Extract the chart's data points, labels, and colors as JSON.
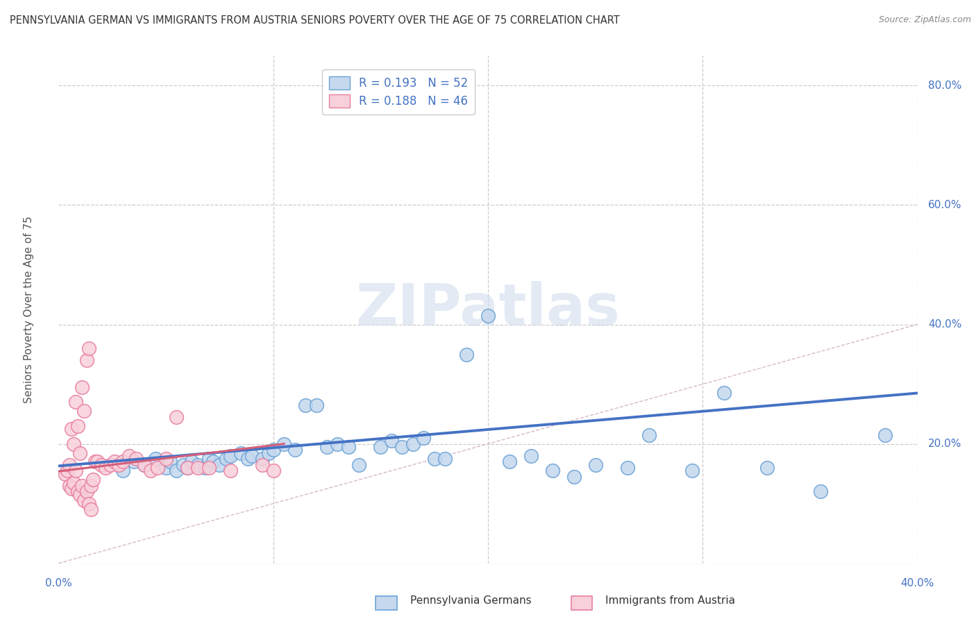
{
  "title": "PENNSYLVANIA GERMAN VS IMMIGRANTS FROM AUSTRIA SENIORS POVERTY OVER THE AGE OF 75 CORRELATION CHART",
  "source": "Source: ZipAtlas.com",
  "ylabel": "Seniors Poverty Over the Age of 75",
  "xlim": [
    0.0,
    0.42
  ],
  "ylim": [
    -0.02,
    0.88
  ],
  "plot_xlim": [
    0.0,
    0.4
  ],
  "plot_ylim": [
    0.0,
    0.85
  ],
  "xticks": [
    0.0,
    0.1,
    0.2,
    0.3,
    0.4
  ],
  "xtick_labels": [
    "0.0%",
    "",
    "",
    "",
    "40.0%"
  ],
  "yticks_right": [
    0.2,
    0.4,
    0.6,
    0.8
  ],
  "ytick_labels_right": [
    "20.0%",
    "40.0%",
    "60.0%",
    "80.0%"
  ],
  "blue_color": "#c5d8ee",
  "blue_edge": "#6ba3d6",
  "pink_color": "#f8d0da",
  "pink_edge": "#e87fa0",
  "trend_blue": "#4472c4",
  "trend_pink": "#d45f7a",
  "diag_color": "#d8b8c8",
  "legend_R1": "0.193",
  "legend_N1": "52",
  "legend_R2": "0.188",
  "legend_N2": "46",
  "watermark": "ZIPatlas",
  "blue_scatter_x": [
    0.03,
    0.035,
    0.04,
    0.045,
    0.05,
    0.052,
    0.055,
    0.058,
    0.06,
    0.062,
    0.065,
    0.068,
    0.07,
    0.072,
    0.075,
    0.078,
    0.08,
    0.085,
    0.088,
    0.09,
    0.095,
    0.098,
    0.1,
    0.105,
    0.11,
    0.115,
    0.12,
    0.125,
    0.13,
    0.135,
    0.14,
    0.15,
    0.155,
    0.16,
    0.165,
    0.17,
    0.175,
    0.18,
    0.19,
    0.2,
    0.21,
    0.22,
    0.23,
    0.24,
    0.25,
    0.265,
    0.275,
    0.295,
    0.31,
    0.33,
    0.355,
    0.385
  ],
  "blue_scatter_y": [
    0.155,
    0.17,
    0.165,
    0.175,
    0.16,
    0.17,
    0.155,
    0.165,
    0.16,
    0.17,
    0.165,
    0.16,
    0.175,
    0.17,
    0.165,
    0.175,
    0.18,
    0.185,
    0.175,
    0.18,
    0.175,
    0.185,
    0.19,
    0.2,
    0.19,
    0.265,
    0.265,
    0.195,
    0.2,
    0.195,
    0.165,
    0.195,
    0.205,
    0.195,
    0.2,
    0.21,
    0.175,
    0.175,
    0.35,
    0.415,
    0.17,
    0.18,
    0.155,
    0.145,
    0.165,
    0.16,
    0.215,
    0.155,
    0.285,
    0.16,
    0.12,
    0.215
  ],
  "pink_scatter_x": [
    0.003,
    0.004,
    0.005,
    0.005,
    0.006,
    0.006,
    0.007,
    0.007,
    0.008,
    0.008,
    0.009,
    0.009,
    0.01,
    0.01,
    0.011,
    0.011,
    0.012,
    0.012,
    0.013,
    0.013,
    0.014,
    0.014,
    0.015,
    0.015,
    0.016,
    0.017,
    0.018,
    0.02,
    0.022,
    0.024,
    0.026,
    0.028,
    0.03,
    0.033,
    0.036,
    0.04,
    0.043,
    0.046,
    0.05,
    0.055,
    0.06,
    0.065,
    0.07,
    0.08,
    0.095,
    0.1
  ],
  "pink_scatter_y": [
    0.15,
    0.155,
    0.13,
    0.165,
    0.125,
    0.225,
    0.135,
    0.2,
    0.155,
    0.27,
    0.12,
    0.23,
    0.115,
    0.185,
    0.13,
    0.295,
    0.105,
    0.255,
    0.12,
    0.34,
    0.1,
    0.36,
    0.13,
    0.09,
    0.14,
    0.17,
    0.17,
    0.165,
    0.16,
    0.165,
    0.17,
    0.165,
    0.17,
    0.18,
    0.175,
    0.165,
    0.155,
    0.16,
    0.175,
    0.245,
    0.16,
    0.16,
    0.16,
    0.155,
    0.165,
    0.155
  ],
  "blue_trend_x": [
    0.0,
    0.4
  ],
  "blue_trend_y": [
    0.163,
    0.285
  ],
  "pink_trend_x": [
    0.0,
    0.105
  ],
  "pink_trend_y": [
    0.154,
    0.2
  ]
}
